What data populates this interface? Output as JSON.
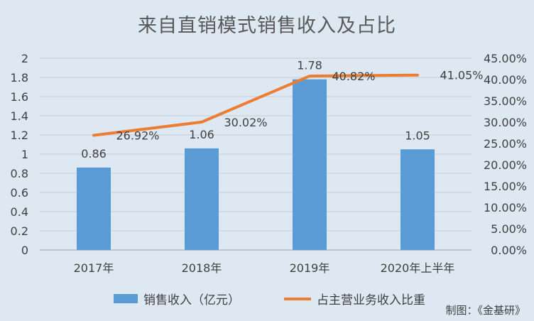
{
  "colors": {
    "background": "#dde8f3",
    "bar": "#5b9bd5",
    "line": "#ed7d31",
    "axis_text": "#404040",
    "gridline": "#c7ccd3"
  },
  "credit": "制图：《金基研》",
  "chart_data": {
    "type": "bar",
    "title": "来自直销模式销售收入及占比",
    "categories": [
      "2017年",
      "2018年",
      "2019年",
      "2020年上半年"
    ],
    "series": [
      {
        "name": "销售收入（亿元）",
        "type": "bar",
        "axis": "left",
        "values": [
          0.86,
          1.06,
          1.78,
          1.05
        ],
        "labels": [
          "0.86",
          "1.06",
          "1.78",
          "1.05"
        ]
      },
      {
        "name": "占主营业务收入比重",
        "type": "line",
        "axis": "right",
        "values": [
          26.92,
          30.02,
          40.82,
          41.05
        ],
        "labels": [
          "26.92%",
          "30.02%",
          "40.82%",
          "41.05%"
        ]
      }
    ],
    "y_left": {
      "min": 0,
      "max": 2,
      "ticks": [
        0,
        0.2,
        0.4,
        0.6,
        0.8,
        1,
        1.2,
        1.4,
        1.6,
        1.8,
        2
      ],
      "tick_labels": [
        "0",
        "0.2",
        "0.4",
        "0.6",
        "0.8",
        "1",
        "1.2",
        "1.4",
        "1.6",
        "1.8",
        "2"
      ]
    },
    "y_right": {
      "min": 0,
      "max": 45,
      "ticks": [
        0,
        5,
        10,
        15,
        20,
        25,
        30,
        35,
        40,
        45
      ],
      "tick_labels": [
        "0.00%",
        "5.00%",
        "10.00%",
        "15.00%",
        "20.00%",
        "25.00%",
        "30.00%",
        "35.00%",
        "40.00%",
        "45.00%"
      ]
    },
    "grid": true,
    "legend_position": "bottom"
  }
}
